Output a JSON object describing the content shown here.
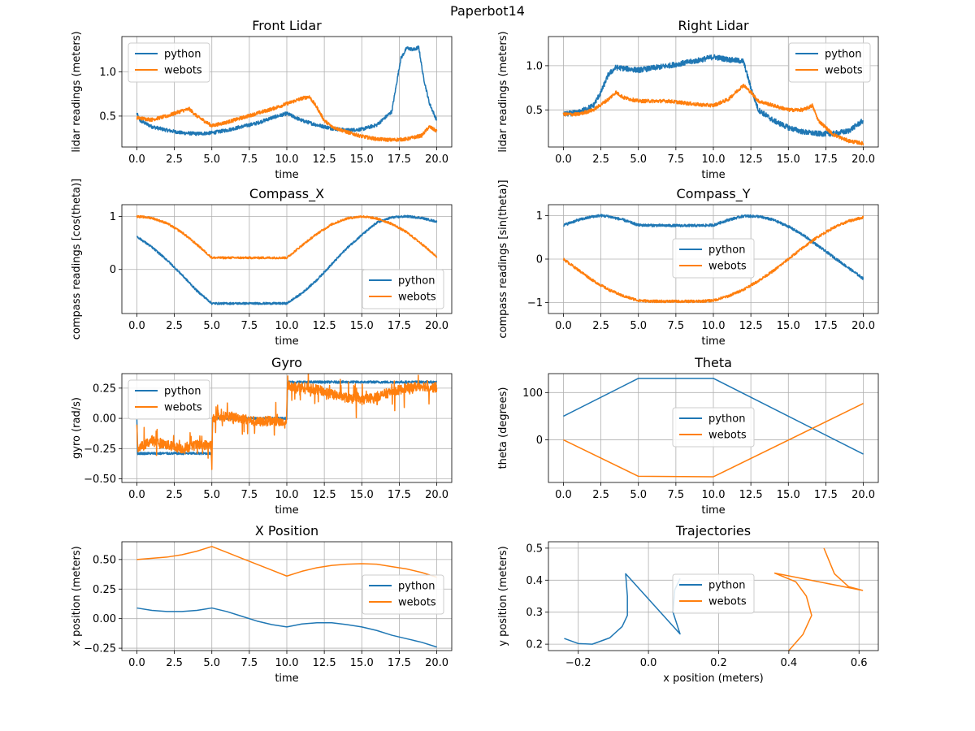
{
  "figure": {
    "suptitle": "Paperbot14"
  },
  "colors": {
    "python": "#1f77b4",
    "webots": "#ff7f0e",
    "grid": "#b0b0b0"
  },
  "chart_data": [
    {
      "id": "front-lidar",
      "type": "line",
      "title": "Front Lidar",
      "xlabel": "time",
      "ylabel": "lidar readings (meters)",
      "xlim": [
        -1.0,
        21.0
      ],
      "ylim": [
        0.15,
        1.4
      ],
      "xticks": [
        0.0,
        2.5,
        5.0,
        7.5,
        10.0,
        12.5,
        15.0,
        17.5,
        20.0
      ],
      "xtick_labels": [
        "0.0",
        "2.5",
        "5.0",
        "7.5",
        "10.0",
        "12.5",
        "15.0",
        "17.5",
        "20.0"
      ],
      "yticks": [
        0.5,
        1.0
      ],
      "ytick_labels": [
        "0.5",
        "1.0"
      ],
      "grid": true,
      "legend": "upper left",
      "series": [
        {
          "name": "python",
          "noise": 0.02,
          "x": [
            0,
            0.2,
            1,
            2,
            3,
            4,
            5,
            6,
            7,
            8,
            9,
            10,
            11,
            12,
            13,
            14,
            15,
            16,
            17,
            17.3,
            17.6,
            18,
            18.5,
            18.8,
            19.1,
            19.5,
            20
          ],
          "y": [
            0.53,
            0.45,
            0.38,
            0.34,
            0.31,
            0.3,
            0.31,
            0.34,
            0.38,
            0.42,
            0.48,
            0.53,
            0.45,
            0.4,
            0.36,
            0.34,
            0.35,
            0.4,
            0.55,
            0.85,
            1.15,
            1.27,
            1.25,
            1.28,
            0.95,
            0.65,
            0.45
          ]
        },
        {
          "name": "webots",
          "noise": 0.02,
          "x": [
            0,
            1,
            2,
            3,
            3.5,
            4,
            5,
            6,
            7,
            8,
            9,
            10,
            11,
            11.5,
            12,
            12.5,
            13,
            14,
            15,
            16,
            17,
            18,
            19,
            19.5,
            20
          ],
          "y": [
            0.48,
            0.46,
            0.5,
            0.56,
            0.58,
            0.5,
            0.39,
            0.43,
            0.48,
            0.53,
            0.58,
            0.64,
            0.7,
            0.72,
            0.6,
            0.45,
            0.38,
            0.32,
            0.27,
            0.24,
            0.23,
            0.24,
            0.28,
            0.38,
            0.33
          ]
        }
      ]
    },
    {
      "id": "right-lidar",
      "type": "line",
      "title": "Right Lidar",
      "xlabel": "time",
      "ylabel": "lidar readings (meters)",
      "xlim": [
        -1.0,
        21.0
      ],
      "ylim": [
        0.08,
        1.33
      ],
      "xticks": [
        0.0,
        2.5,
        5.0,
        7.5,
        10.0,
        12.5,
        15.0,
        17.5,
        20.0
      ],
      "xtick_labels": [
        "0.0",
        "2.5",
        "5.0",
        "7.5",
        "10.0",
        "12.5",
        "15.0",
        "17.5",
        "20.0"
      ],
      "yticks": [
        0.5,
        1.0
      ],
      "ytick_labels": [
        "0.5",
        "1.0"
      ],
      "grid": true,
      "legend": "upper right",
      "series": [
        {
          "name": "python",
          "noise": 0.03,
          "x": [
            0,
            1,
            2,
            2.5,
            3,
            3.5,
            5,
            7,
            9,
            10,
            11,
            12,
            12.5,
            13,
            14,
            15,
            16,
            17,
            18,
            19,
            20
          ],
          "y": [
            0.45,
            0.47,
            0.55,
            0.7,
            0.9,
            0.98,
            0.95,
            1.0,
            1.06,
            1.1,
            1.07,
            1.05,
            0.75,
            0.5,
            0.38,
            0.3,
            0.25,
            0.23,
            0.23,
            0.26,
            0.38
          ]
        },
        {
          "name": "webots",
          "noise": 0.02,
          "x": [
            0,
            1,
            2,
            3,
            3.5,
            4,
            5,
            7,
            9,
            10,
            11,
            12,
            12.5,
            13,
            14,
            15,
            16,
            16.6,
            17,
            18,
            19,
            20
          ],
          "y": [
            0.45,
            0.45,
            0.5,
            0.62,
            0.7,
            0.64,
            0.6,
            0.6,
            0.56,
            0.55,
            0.62,
            0.78,
            0.7,
            0.6,
            0.55,
            0.5,
            0.5,
            0.55,
            0.38,
            0.22,
            0.15,
            0.12
          ]
        }
      ]
    },
    {
      "id": "compass-x",
      "type": "line",
      "title": "Compass_X",
      "xlabel": "time",
      "ylabel": "compass readings [cos(theta)]",
      "xlim": [
        -1.0,
        21.0
      ],
      "ylim": [
        -0.83,
        1.22
      ],
      "xticks": [
        0.0,
        2.5,
        5.0,
        7.5,
        10.0,
        12.5,
        15.0,
        17.5,
        20.0
      ],
      "xtick_labels": [
        "0.0",
        "2.5",
        "5.0",
        "7.5",
        "10.0",
        "12.5",
        "15.0",
        "17.5",
        "20.0"
      ],
      "yticks": [
        0,
        1
      ],
      "ytick_labels": [
        "0",
        "1"
      ],
      "grid": true,
      "legend": "lower right",
      "series": [
        {
          "name": "python",
          "noise": 0.02,
          "x": [
            0,
            1,
            2,
            3,
            4,
            5,
            6,
            7,
            8,
            9,
            10,
            11,
            12,
            13,
            14,
            15,
            16,
            17,
            18,
            19,
            20
          ],
          "y": [
            0.62,
            0.42,
            0.18,
            -0.1,
            -0.4,
            -0.64,
            -0.64,
            -0.64,
            -0.64,
            -0.64,
            -0.64,
            -0.45,
            -0.2,
            0.1,
            0.4,
            0.65,
            0.88,
            0.98,
            1.0,
            0.97,
            0.9
          ]
        },
        {
          "name": "webots",
          "noise": 0.02,
          "x": [
            0,
            1,
            2,
            3,
            4,
            5,
            6,
            7,
            8,
            9,
            10,
            11,
            12,
            13,
            14,
            15,
            16,
            17,
            18,
            19,
            20
          ],
          "y": [
            1.0,
            0.97,
            0.87,
            0.7,
            0.47,
            0.22,
            0.22,
            0.22,
            0.22,
            0.22,
            0.22,
            0.45,
            0.67,
            0.85,
            0.96,
            1.0,
            0.96,
            0.86,
            0.7,
            0.48,
            0.24
          ]
        }
      ]
    },
    {
      "id": "compass-y",
      "type": "line",
      "title": "Compass_Y",
      "xlabel": "time",
      "ylabel": "compass readings [sin(theta)]",
      "xlim": [
        -1.0,
        21.0
      ],
      "ylim": [
        -1.25,
        1.25
      ],
      "xticks": [
        0.0,
        2.5,
        5.0,
        7.5,
        10.0,
        12.5,
        15.0,
        17.5,
        20.0
      ],
      "xtick_labels": [
        "0.0",
        "2.5",
        "5.0",
        "7.5",
        "10.0",
        "12.5",
        "15.0",
        "17.5",
        "20.0"
      ],
      "yticks": [
        -1,
        0,
        1
      ],
      "ytick_labels": [
        "−1",
        "0",
        "1"
      ],
      "grid": true,
      "legend": "center",
      "series": [
        {
          "name": "python",
          "noise": 0.03,
          "x": [
            0,
            1,
            2,
            2.5,
            3,
            4,
            5,
            7,
            9,
            10,
            11,
            12,
            13,
            14,
            15,
            16,
            17,
            18,
            19,
            20
          ],
          "y": [
            0.78,
            0.9,
            0.98,
            1.0,
            0.98,
            0.9,
            0.78,
            0.77,
            0.77,
            0.78,
            0.9,
            0.99,
            0.98,
            0.9,
            0.75,
            0.55,
            0.3,
            0.05,
            -0.2,
            -0.45
          ]
        },
        {
          "name": "webots",
          "noise": 0.03,
          "x": [
            0,
            1,
            2,
            3,
            4,
            5,
            6,
            7,
            8,
            9,
            10,
            11,
            12,
            13,
            14,
            15,
            16,
            17,
            18,
            19,
            20
          ],
          "y": [
            0.0,
            -0.25,
            -0.5,
            -0.7,
            -0.85,
            -0.95,
            -0.97,
            -0.97,
            -0.97,
            -0.97,
            -0.95,
            -0.85,
            -0.7,
            -0.5,
            -0.27,
            0.0,
            0.27,
            0.52,
            0.72,
            0.87,
            0.96
          ]
        }
      ]
    },
    {
      "id": "gyro",
      "type": "line",
      "title": "Gyro",
      "xlabel": "time",
      "ylabel": "gyro (rad/s)",
      "xlim": [
        -1.0,
        21.0
      ],
      "ylim": [
        -0.53,
        0.37
      ],
      "xticks": [
        0.0,
        2.5,
        5.0,
        7.5,
        10.0,
        12.5,
        15.0,
        17.5,
        20.0
      ],
      "xtick_labels": [
        "0.0",
        "2.5",
        "5.0",
        "7.5",
        "10.0",
        "12.5",
        "15.0",
        "17.5",
        "20.0"
      ],
      "yticks": [
        -0.5,
        -0.25,
        0.0,
        0.25
      ],
      "ytick_labels": [
        "−0.50",
        "−0.25",
        "0.00",
        "0.25"
      ],
      "grid": true,
      "legend": "upper left",
      "series": [
        {
          "name": "python",
          "noise": 0.01,
          "x": [
            0,
            0.05,
            4.95,
            5.0,
            5.05,
            9.95,
            10.0,
            10.05,
            20
          ],
          "y": [
            0.0,
            -0.29,
            -0.29,
            -0.29,
            0.0,
            0.0,
            0.0,
            0.3,
            0.3
          ]
        },
        {
          "name": "webots",
          "noise": 0.04,
          "burst": true,
          "x": [
            0,
            0.05,
            0.5,
            1,
            2,
            3,
            4,
            4.95,
            5.0,
            5.05,
            6,
            7,
            8,
            9,
            9.95,
            10.05,
            11,
            12,
            13,
            14,
            15,
            16,
            17,
            18,
            19,
            20
          ],
          "y": [
            -0.05,
            -0.25,
            -0.22,
            -0.18,
            -0.22,
            -0.25,
            -0.22,
            -0.22,
            -0.45,
            0.0,
            0.02,
            0.0,
            -0.03,
            -0.02,
            -0.05,
            0.27,
            0.26,
            0.24,
            0.2,
            0.17,
            0.15,
            0.18,
            0.22,
            0.25,
            0.27,
            0.25
          ]
        }
      ]
    },
    {
      "id": "theta",
      "type": "line",
      "title": "Theta",
      "xlabel": "time",
      "ylabel": "theta (degrees)",
      "xlim": [
        -1.0,
        21.0
      ],
      "ylim": [
        -90,
        140
      ],
      "xticks": [
        0.0,
        2.5,
        5.0,
        7.5,
        10.0,
        12.5,
        15.0,
        17.5,
        20.0
      ],
      "xtick_labels": [
        "0.0",
        "2.5",
        "5.0",
        "7.5",
        "10.0",
        "12.5",
        "15.0",
        "17.5",
        "20.0"
      ],
      "yticks": [
        0,
        100
      ],
      "ytick_labels": [
        "0",
        "100"
      ],
      "grid": true,
      "legend": "center",
      "series": [
        {
          "name": "python",
          "x": [
            0,
            5,
            10,
            20
          ],
          "y": [
            50,
            130,
            130,
            -30
          ]
        },
        {
          "name": "webots",
          "x": [
            0,
            5,
            10,
            20
          ],
          "y": [
            0,
            -77,
            -78,
            77
          ]
        }
      ]
    },
    {
      "id": "x-position",
      "type": "line",
      "title": "X Position",
      "xlabel": "time",
      "ylabel": "x position (meters)",
      "xlim": [
        -1.0,
        21.0
      ],
      "ylim": [
        -0.27,
        0.65
      ],
      "xticks": [
        0.0,
        2.5,
        5.0,
        7.5,
        10.0,
        12.5,
        15.0,
        17.5,
        20.0
      ],
      "xtick_labels": [
        "0.0",
        "2.5",
        "5.0",
        "7.5",
        "10.0",
        "12.5",
        "15.0",
        "17.5",
        "20.0"
      ],
      "yticks": [
        -0.25,
        0.0,
        0.25,
        0.5
      ],
      "ytick_labels": [
        "−0.25",
        "0.00",
        "0.25",
        "0.50"
      ],
      "grid": true,
      "legend": "center right",
      "series": [
        {
          "name": "python",
          "x": [
            0,
            1,
            2,
            3,
            4,
            5,
            6,
            7,
            8,
            9,
            10,
            11,
            12,
            13,
            14,
            15,
            16,
            17,
            18,
            19,
            20
          ],
          "y": [
            0.09,
            0.07,
            0.06,
            0.06,
            0.07,
            0.09,
            0.06,
            0.02,
            -0.02,
            -0.05,
            -0.07,
            -0.045,
            -0.035,
            -0.035,
            -0.05,
            -0.07,
            -0.1,
            -0.14,
            -0.17,
            -0.2,
            -0.24
          ]
        },
        {
          "name": "webots",
          "x": [
            0,
            1,
            2,
            3,
            4,
            5,
            6,
            7,
            8,
            9,
            10,
            11,
            12,
            13,
            14,
            15,
            16,
            17,
            18,
            19,
            20
          ],
          "y": [
            0.5,
            0.51,
            0.52,
            0.54,
            0.57,
            0.61,
            0.56,
            0.51,
            0.46,
            0.41,
            0.36,
            0.4,
            0.43,
            0.45,
            0.46,
            0.465,
            0.46,
            0.44,
            0.42,
            0.39,
            0.35
          ]
        }
      ]
    },
    {
      "id": "trajectories",
      "type": "line",
      "title": "Trajectories",
      "xlabel": "x position (meters)",
      "ylabel": "y position (meters)",
      "xlim": [
        -0.285,
        0.655
      ],
      "ylim": [
        0.18,
        0.52
      ],
      "xticks": [
        -0.2,
        0.0,
        0.2,
        0.4,
        0.6
      ],
      "xtick_labels": [
        "−0.2",
        "0.0",
        "0.2",
        "0.4",
        "0.6"
      ],
      "yticks": [
        0.2,
        0.3,
        0.4,
        0.5
      ],
      "ytick_labels": [
        "0.2",
        "0.3",
        "0.4",
        "0.5"
      ],
      "grid": true,
      "legend": "upper center",
      "series": [
        {
          "name": "python",
          "x": [
            -0.24,
            -0.2,
            -0.16,
            -0.11,
            -0.075,
            -0.06,
            -0.06,
            -0.065,
            0.09,
            0.07,
            0.075,
            0.09
          ],
          "y": [
            0.218,
            0.202,
            0.2,
            0.22,
            0.255,
            0.29,
            0.35,
            0.42,
            0.232,
            0.3,
            0.37,
            0.405
          ]
        },
        {
          "name": "webots",
          "x": [
            0.36,
            0.4,
            0.44,
            0.465,
            0.45,
            0.42,
            0.36,
            0.61,
            0.57,
            0.53,
            0.5
          ],
          "y": [
            0.158,
            0.18,
            0.23,
            0.29,
            0.35,
            0.395,
            0.422,
            0.368,
            0.38,
            0.42,
            0.5
          ]
        }
      ]
    }
  ]
}
